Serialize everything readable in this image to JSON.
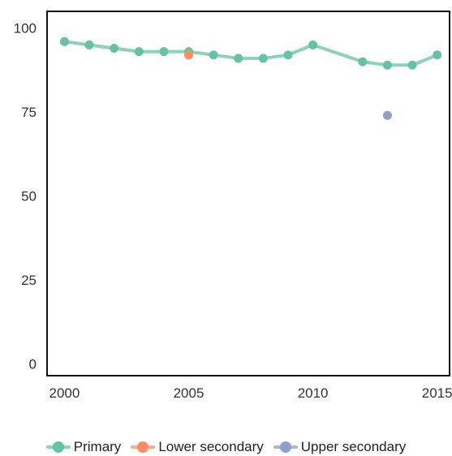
{
  "chart_data": {
    "type": "line",
    "title": "",
    "xlabel": "",
    "ylabel": "",
    "xlim": [
      1999.3,
      2015.5
    ],
    "ylim": [
      -3.5,
      105
    ],
    "x_ticks": [
      "2000",
      "2005",
      "2010",
      "2015"
    ],
    "y_ticks": [
      "0",
      "25",
      "50",
      "75",
      "100"
    ],
    "grid": false,
    "legend_position": "bottom",
    "series": [
      {
        "name": "Primary",
        "color": "#66c2a5",
        "x": [
          2000,
          2001,
          2002,
          2003,
          2004,
          2005,
          2006,
          2007,
          2008,
          2009,
          2010,
          2012,
          2013,
          2014,
          2015
        ],
        "values": [
          96,
          95,
          94,
          93,
          93,
          93,
          92,
          91,
          91,
          92,
          95,
          90,
          89,
          89,
          92
        ]
      },
      {
        "name": "Lower secondary",
        "color": "#fc8d62",
        "x": [
          2005
        ],
        "values": [
          92
        ]
      },
      {
        "name": "Upper secondary",
        "color": "#8da0cb",
        "x": [
          2013
        ],
        "values": [
          74
        ]
      }
    ]
  }
}
